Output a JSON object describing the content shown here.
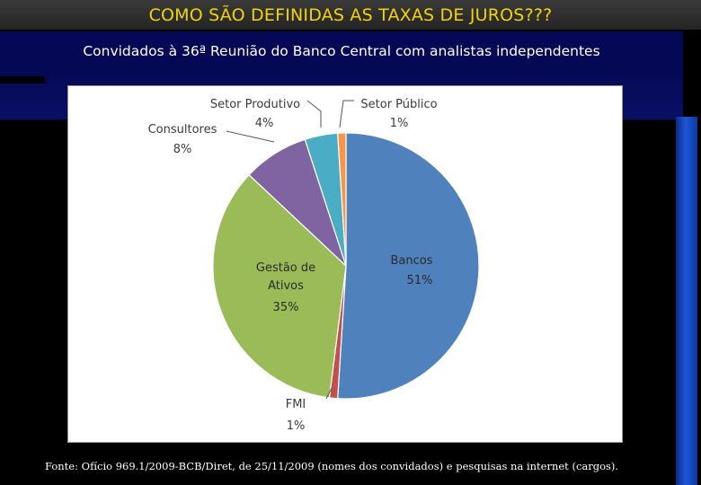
{
  "slide": {
    "title": "COMO SÃO DEFINIDAS AS TAXAS DE JUROS???",
    "subtitle": "Convidados à 36ª Reunião do Banco Central com analistas independentes",
    "source": "Fonte: Ofício 969.1/2009-BCB/Diret, de 25/11/2009 (nomes dos convidados) e pesquisas na internet (cargos).",
    "colors": {
      "title_text": "#f4d400",
      "title_bar": "#2e2e2e",
      "band": "#050855",
      "background": "#000000"
    }
  },
  "chart_data": {
    "type": "pie",
    "slices": [
      {
        "label": "Bancos",
        "value": 51,
        "value_label": "51%",
        "color": "#4f81bd"
      },
      {
        "label": "FMI",
        "value": 1,
        "value_label": "1%",
        "color": "#c0504d"
      },
      {
        "label": "Gestão de Ativos",
        "value": 35,
        "value_label": "35%",
        "color": "#9bbb59"
      },
      {
        "label": "Consultores",
        "value": 8,
        "value_label": "8%",
        "color": "#8064a2"
      },
      {
        "label": "Setor Produtivo",
        "value": 4,
        "value_label": "4%",
        "color": "#4bacc6"
      },
      {
        "label": "Setor Público",
        "value": 1,
        "value_label": "1%",
        "color": "#f79646"
      }
    ],
    "start": "12 o'clock",
    "direction": "clockwise",
    "legend": "none"
  }
}
